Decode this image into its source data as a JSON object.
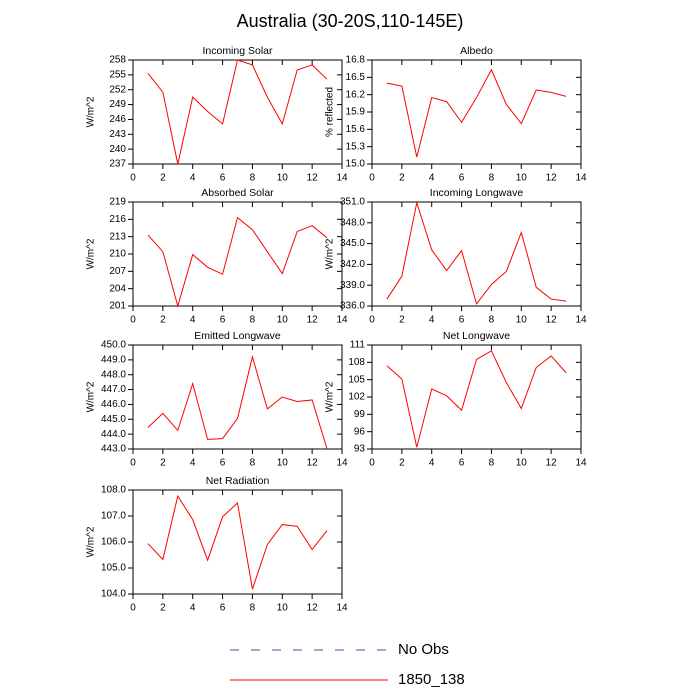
{
  "title": "Australia (30-20S,110-145E)",
  "legend": [
    {
      "name": "No Obs",
      "color": "#4a4aa8",
      "dash": true
    },
    {
      "name": "1850_138",
      "color": "#ff0000",
      "dash": false
    }
  ],
  "chart_data": [
    {
      "type": "line",
      "title": "Incoming Solar",
      "ylabel": "W/m^2",
      "color": "#ff0000",
      "x": [
        1,
        2,
        3,
        4,
        5,
        6,
        7,
        8,
        9,
        10,
        11,
        12,
        13
      ],
      "values": [
        255.3,
        251.5,
        237,
        250.5,
        247.6,
        245.1,
        258,
        257,
        250.5,
        245.1,
        256,
        257,
        254.1
      ],
      "xlim": [
        0,
        14
      ],
      "xticks": [
        0,
        2,
        4,
        6,
        8,
        10,
        12,
        14
      ],
      "ylim": [
        237,
        258
      ],
      "yticks": [
        237,
        240,
        243,
        246,
        249,
        252,
        255,
        258
      ]
    },
    {
      "type": "line",
      "title": "Albedo",
      "ylabel": "% reflected",
      "color": "#ff0000",
      "x": [
        1,
        2,
        3,
        4,
        5,
        6,
        7,
        8,
        9,
        10,
        11,
        12,
        13
      ],
      "values": [
        16.4,
        16.35,
        15.12,
        16.15,
        16.08,
        15.72,
        16.15,
        16.63,
        16.03,
        15.7,
        16.28,
        16.24,
        16.17
      ],
      "xlim": [
        0,
        14
      ],
      "xticks": [
        0,
        2,
        4,
        6,
        8,
        10,
        12,
        14
      ],
      "ylim": [
        15.0,
        16.8
      ],
      "yticks": [
        {
          "value": 15,
          "label": "15.0"
        },
        15.3,
        15.6,
        15.9,
        16.2,
        16.5,
        16.8
      ]
    },
    {
      "type": "line",
      "title": "Absorbed Solar",
      "ylabel": "W/m^2",
      "color": "#ff0000",
      "x": [
        1,
        2,
        3,
        4,
        5,
        6,
        7,
        8,
        9,
        10,
        11,
        12,
        13
      ],
      "values": [
        213.3,
        210.4,
        201,
        209.9,
        207.7,
        206.5,
        216.3,
        214.2,
        210.4,
        206.6,
        213.9,
        214.9,
        212.8
      ],
      "xlim": [
        0,
        14
      ],
      "xticks": [
        0,
        2,
        4,
        6,
        8,
        10,
        12,
        14
      ],
      "ylim": [
        201,
        219
      ],
      "yticks": [
        201,
        204,
        207,
        210,
        213,
        216,
        219
      ]
    },
    {
      "type": "line",
      "title": "Incoming Longwave",
      "ylabel": "W/m^2",
      "color": "#ff0000",
      "x": [
        1,
        2,
        3,
        4,
        5,
        6,
        7,
        8,
        9,
        10,
        11,
        12,
        13
      ],
      "values": [
        337.0,
        340.3,
        350.9,
        344.1,
        341.1,
        344.0,
        336.3,
        339.1,
        341.0,
        346.6,
        338.7,
        337.0,
        336.7
      ],
      "xlim": [
        0,
        14
      ],
      "xticks": [
        0,
        2,
        4,
        6,
        8,
        10,
        12,
        14
      ],
      "ylim": [
        336,
        351
      ],
      "yticks": [
        {
          "value": 336,
          "label": "336.0"
        },
        {
          "value": 339,
          "label": "339.0"
        },
        {
          "value": 342,
          "label": "342.0"
        },
        {
          "value": 345,
          "label": "345.0"
        },
        {
          "value": 348,
          "label": "348.0"
        },
        {
          "value": 351,
          "label": "351.0"
        }
      ]
    },
    {
      "type": "line",
      "title": "Emitted Longwave",
      "ylabel": "W/m^2",
      "color": "#ff0000",
      "x": [
        1,
        2,
        3,
        4,
        5,
        6,
        7,
        8,
        9,
        10,
        11,
        12,
        13
      ],
      "values": [
        444.45,
        445.4,
        444.25,
        447.4,
        443.65,
        443.7,
        445.05,
        449.2,
        445.7,
        446.5,
        446.2,
        446.3,
        443.0
      ],
      "xlim": [
        0,
        14
      ],
      "xticks": [
        0,
        2,
        4,
        6,
        8,
        10,
        12,
        14
      ],
      "ylim": [
        443,
        450
      ],
      "yticks": [
        {
          "value": 443,
          "label": "443.0"
        },
        {
          "value": 444,
          "label": "444.0"
        },
        {
          "value": 445,
          "label": "445.0"
        },
        {
          "value": 446,
          "label": "446.0"
        },
        {
          "value": 447,
          "label": "447.0"
        },
        {
          "value": 448,
          "label": "448.0"
        },
        {
          "value": 449,
          "label": "449.0"
        },
        {
          "value": 450,
          "label": "450.0"
        }
      ]
    },
    {
      "type": "line",
      "title": "Net Longwave",
      "ylabel": "W/m^2",
      "color": "#ff0000",
      "x": [
        1,
        2,
        3,
        4,
        5,
        6,
        7,
        8,
        9,
        10,
        11,
        12,
        13
      ],
      "values": [
        107.4,
        105.1,
        93.3,
        103.4,
        102.2,
        99.7,
        108.5,
        110.0,
        104.5,
        100.0,
        107.1,
        109.1,
        106.2
      ],
      "xlim": [
        0,
        14
      ],
      "xticks": [
        0,
        2,
        4,
        6,
        8,
        10,
        12,
        14
      ],
      "ylim": [
        93,
        111
      ],
      "yticks": [
        93,
        96,
        99,
        102,
        105,
        108,
        111
      ]
    },
    {
      "type": "line",
      "title": "Net Radiation",
      "ylabel": "W/m^2",
      "color": "#ff0000",
      "x": [
        1,
        2,
        3,
        4,
        5,
        6,
        7,
        8,
        9,
        10,
        11,
        12,
        13
      ],
      "values": [
        105.94,
        105.33,
        107.77,
        106.86,
        105.3,
        106.97,
        107.5,
        104.19,
        105.9,
        106.67,
        106.6,
        105.71,
        106.44
      ],
      "xlim": [
        0,
        14
      ],
      "xticks": [
        0,
        2,
        4,
        6,
        8,
        10,
        12,
        14
      ],
      "ylim": [
        104,
        108
      ],
      "yticks": [
        {
          "value": 104,
          "label": "104.0"
        },
        {
          "value": 105,
          "label": "105.0"
        },
        {
          "value": 106,
          "label": "106.0"
        },
        {
          "value": 107,
          "label": "107.0"
        },
        {
          "value": 108,
          "label": "108.0"
        }
      ]
    }
  ]
}
